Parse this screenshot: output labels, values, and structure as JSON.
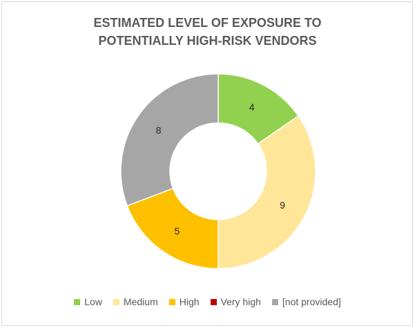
{
  "chart_data": {
    "type": "pie",
    "donut": true,
    "title_lines": [
      "ESTIMATED LEVEL OF EXPOSURE TO",
      "POTENTIALLY HIGH-RISK VENDORS"
    ],
    "categories": [
      "Low",
      "Medium",
      "High",
      "Very high",
      "[not provided]"
    ],
    "values": [
      4,
      9,
      5,
      0,
      8
    ],
    "colors": [
      "#92d050",
      "#ffe699",
      "#ffc000",
      "#c00000",
      "#a6a6a6"
    ],
    "data_labels": [
      "4",
      "9",
      "5",
      "",
      "8"
    ],
    "legend_position": "bottom"
  }
}
